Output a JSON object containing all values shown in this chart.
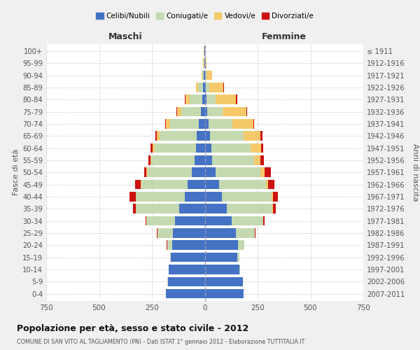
{
  "age_groups": [
    "0-4",
    "5-9",
    "10-14",
    "15-19",
    "20-24",
    "25-29",
    "30-34",
    "35-39",
    "40-44",
    "45-49",
    "50-54",
    "55-59",
    "60-64",
    "65-69",
    "70-74",
    "75-79",
    "80-84",
    "85-89",
    "90-94",
    "95-99",
    "100+"
  ],
  "birth_years": [
    "2007-2011",
    "2002-2006",
    "1997-2001",
    "1992-1996",
    "1987-1991",
    "1982-1986",
    "1977-1981",
    "1972-1976",
    "1967-1971",
    "1962-1966",
    "1957-1961",
    "1952-1956",
    "1947-1951",
    "1942-1946",
    "1937-1941",
    "1932-1936",
    "1927-1931",
    "1922-1926",
    "1917-1921",
    "1912-1916",
    "≤ 1911"
  ],
  "maschi": {
    "celibi": [
      185,
      175,
      170,
      160,
      155,
      150,
      140,
      120,
      95,
      80,
      60,
      48,
      42,
      38,
      28,
      18,
      12,
      8,
      5,
      3,
      2
    ],
    "coniugati": [
      0,
      1,
      2,
      5,
      22,
      75,
      135,
      205,
      230,
      220,
      210,
      205,
      195,
      175,
      135,
      92,
      58,
      22,
      6,
      3,
      1
    ],
    "vedovi": [
      0,
      0,
      0,
      0,
      0,
      0,
      1,
      1,
      2,
      3,
      5,
      5,
      10,
      15,
      20,
      20,
      22,
      12,
      4,
      2,
      1
    ],
    "divorziati": [
      0,
      0,
      0,
      0,
      2,
      3,
      5,
      12,
      28,
      28,
      12,
      10,
      8,
      5,
      5,
      3,
      2,
      0,
      0,
      0,
      0
    ]
  },
  "femmine": {
    "nubili": [
      185,
      180,
      165,
      155,
      158,
      148,
      128,
      105,
      82,
      68,
      52,
      36,
      30,
      26,
      18,
      12,
      8,
      5,
      3,
      2,
      1
    ],
    "coniugate": [
      0,
      1,
      3,
      8,
      28,
      88,
      148,
      215,
      235,
      222,
      210,
      198,
      188,
      158,
      112,
      72,
      42,
      16,
      4,
      1,
      0
    ],
    "vedove": [
      0,
      0,
      0,
      0,
      0,
      1,
      2,
      3,
      5,
      10,
      20,
      30,
      50,
      80,
      100,
      112,
      98,
      68,
      28,
      6,
      1
    ],
    "divorziate": [
      0,
      0,
      0,
      0,
      1,
      3,
      5,
      12,
      25,
      28,
      30,
      15,
      10,
      8,
      5,
      5,
      5,
      2,
      0,
      0,
      0
    ]
  },
  "colors": {
    "celibi_nubili": "#4472C4",
    "coniugati": "#C5D9B0",
    "vedovi": "#F5C96A",
    "divorziati": "#CC1111"
  },
  "title": "Popolazione per età, sesso e stato civile - 2012",
  "subtitle": "COMUNE DI SAN VITO AL TAGLIAMENTO (PN) - Dati ISTAT 1° gennaio 2012 - Elaborazione TUTTITALIA.IT",
  "ylabel_left": "Fasce di età",
  "ylabel_right": "Anni di nascita",
  "xlabel_left": "Maschi",
  "xlabel_right": "Femmine",
  "xlim": 750,
  "legend_labels": [
    "Celibi/Nubili",
    "Coniugati/e",
    "Vedovi/e",
    "Divorziati/e"
  ],
  "bg_color": "#f0f0f0",
  "plot_bg": "#ffffff"
}
